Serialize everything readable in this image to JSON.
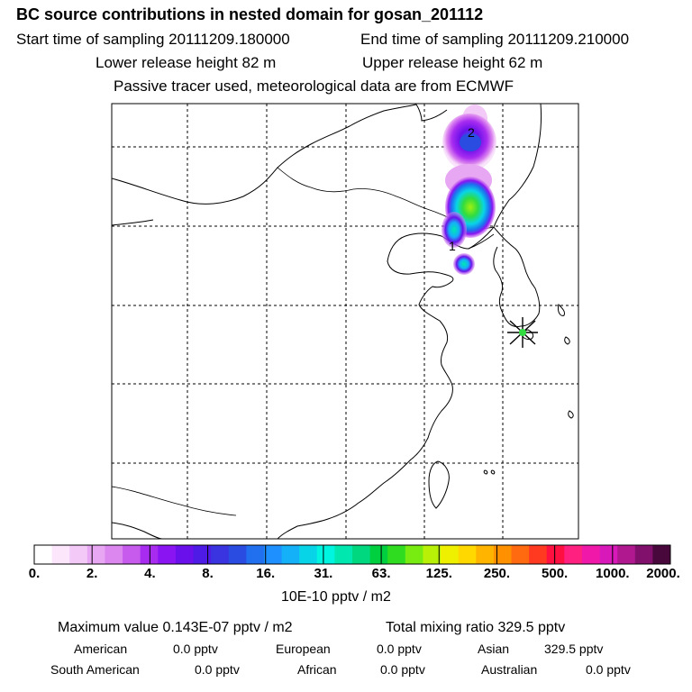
{
  "header": {
    "title": "BC  source contributions in nested domain for gosan_201112",
    "start_time": "Start time of sampling 20111209.180000",
    "end_time": "End time of sampling 20111209.210000",
    "lower_release": "Lower release height   82 m",
    "upper_release": "Upper release height   62 m",
    "note": "Passive tracer used, meteorological data are from ECMWF"
  },
  "map": {
    "station_marker": "asterisk-station-icon",
    "plume_labels": [
      "2",
      "1"
    ]
  },
  "colorbar": {
    "tick_labels": [
      "0.",
      "2.",
      "4.",
      "8.",
      "16.",
      "31.",
      "63.",
      "125.",
      "250.",
      "500.",
      "1000.",
      "2000."
    ],
    "colors": [
      "#ffffff",
      "#fbe6fb",
      "#f3c9f7",
      "#e8a7f3",
      "#dc86ef",
      "#c65bed",
      "#a82cf0",
      "#8a14f2",
      "#6a10ea",
      "#4d1ae6",
      "#3a33e0",
      "#2a4ce0",
      "#2070f0",
      "#1e90ff",
      "#14b0f8",
      "#08d4e8",
      "#00f5e0",
      "#00e8b0",
      "#00d880",
      "#00d040",
      "#30dc20",
      "#78ec10",
      "#b8f008",
      "#eef000",
      "#ffd800",
      "#ffb400",
      "#ff9000",
      "#ff6a10",
      "#ff3a20",
      "#ff1040",
      "#ff2080",
      "#f018a8",
      "#d818b8",
      "#b01890",
      "#80106c",
      "#48083c"
    ],
    "units": "10E-10 pptv / m2"
  },
  "stats": {
    "max_value": "Maximum value  0.143E-07 pptv / m2",
    "total_mixing": "Total mixing ratio      329.5 pptv",
    "regions": [
      {
        "name": "American",
        "value": "0.0 pptv"
      },
      {
        "name": "European",
        "value": "0.0 pptv"
      },
      {
        "name": "Asian",
        "value": "329.5 pptv"
      },
      {
        "name": "South American",
        "value": "0.0 pptv"
      },
      {
        "name": "African",
        "value": "0.0 pptv"
      },
      {
        "name": "Australian",
        "value": "0.0 pptv"
      }
    ]
  }
}
